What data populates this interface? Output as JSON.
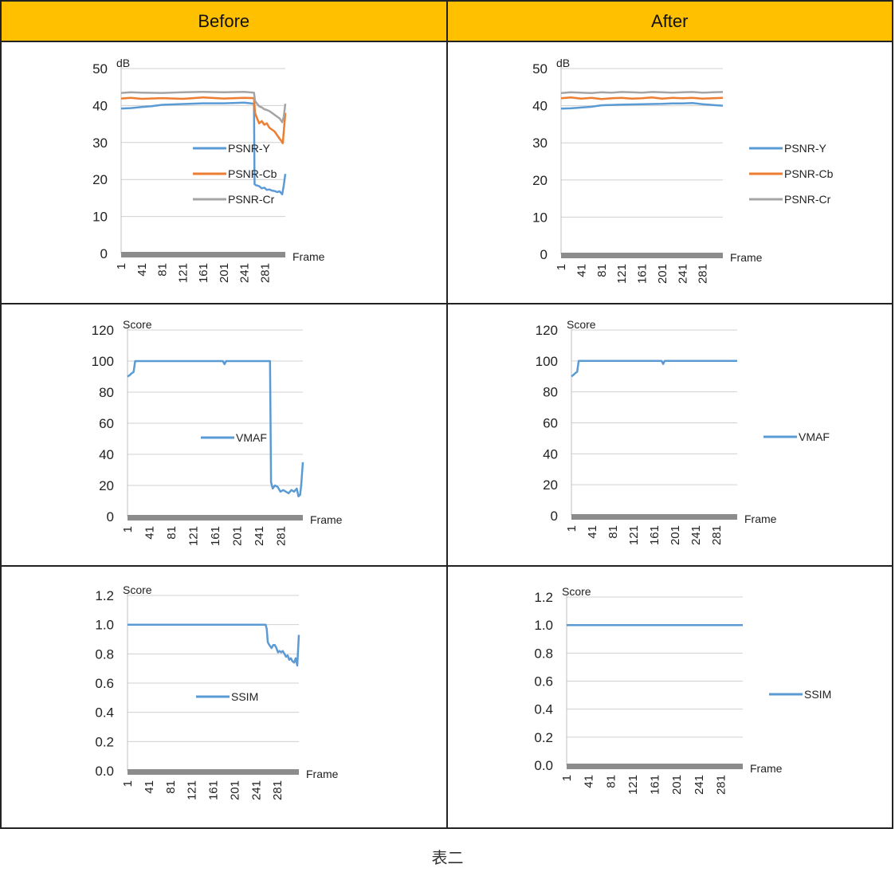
{
  "headers": {
    "before": "Before",
    "after": "After"
  },
  "caption": "表二",
  "chart_data": [
    {
      "id": "psnr-before",
      "type": "line",
      "unit_label": "dB",
      "xlabel": "Frame",
      "ylim": [
        0,
        50
      ],
      "yticks": [
        "0",
        "10",
        "20",
        "30",
        "40",
        "50"
      ],
      "xticks": [
        "1",
        "41",
        "81",
        "121",
        "161",
        "201",
        "241",
        "281"
      ],
      "x_range": [
        1,
        321
      ],
      "grid": true,
      "legend_position": "right",
      "series": [
        {
          "name": "PSNR-Y",
          "color": "#5b9bd5",
          "x": [
            1,
            20,
            41,
            60,
            81,
            121,
            161,
            201,
            241,
            260,
            261,
            263,
            270,
            275,
            280,
            285,
            290,
            295,
            300,
            305,
            310,
            315,
            318,
            321
          ],
          "y": [
            39.2,
            39.3,
            39.6,
            39.8,
            40.2,
            40.4,
            40.6,
            40.6,
            40.8,
            40.5,
            18.8,
            18.5,
            18.2,
            17.6,
            17.8,
            17.2,
            17.3,
            17.0,
            16.9,
            16.6,
            16.8,
            16.0,
            18.5,
            21.5
          ]
        },
        {
          "name": "PSNR-Cb",
          "color": "#ed7d31",
          "x": [
            1,
            20,
            41,
            81,
            121,
            161,
            201,
            241,
            260,
            262,
            266,
            270,
            275,
            280,
            285,
            290,
            295,
            300,
            305,
            310,
            313,
            316,
            318,
            321
          ],
          "y": [
            41.9,
            42.1,
            41.8,
            42.0,
            41.8,
            42.2,
            41.9,
            42.1,
            42.0,
            38.0,
            36.5,
            35.2,
            35.8,
            34.8,
            35.2,
            34.0,
            33.5,
            33.0,
            32.0,
            31.0,
            30.5,
            29.8,
            33.0,
            38.0
          ]
        },
        {
          "name": "PSNR-Cr",
          "color": "#a5a5a5",
          "x": [
            1,
            20,
            41,
            81,
            121,
            161,
            201,
            241,
            260,
            262,
            266,
            270,
            275,
            280,
            285,
            290,
            295,
            300,
            305,
            310,
            315,
            318,
            321
          ],
          "y": [
            43.4,
            43.6,
            43.5,
            43.4,
            43.6,
            43.7,
            43.6,
            43.7,
            43.5,
            41.2,
            40.5,
            39.8,
            39.5,
            39.0,
            38.8,
            38.5,
            38.0,
            37.5,
            37.0,
            36.5,
            35.5,
            37.0,
            40.5
          ]
        }
      ]
    },
    {
      "id": "psnr-after",
      "type": "line",
      "unit_label": "dB",
      "xlabel": "Frame",
      "ylim": [
        0,
        50
      ],
      "yticks": [
        "0",
        "10",
        "20",
        "30",
        "40",
        "50"
      ],
      "xticks": [
        "1",
        "41",
        "81",
        "121",
        "161",
        "201",
        "241",
        "281"
      ],
      "x_range": [
        1,
        321
      ],
      "grid": true,
      "legend_position": "right",
      "series": [
        {
          "name": "PSNR-Y",
          "color": "#5b9bd5",
          "x": [
            1,
            20,
            41,
            60,
            81,
            121,
            161,
            201,
            221,
            241,
            261,
            281,
            301,
            321
          ],
          "y": [
            39.2,
            39.3,
            39.5,
            39.7,
            40.1,
            40.3,
            40.4,
            40.5,
            40.6,
            40.6,
            40.7,
            40.4,
            40.2,
            40.0
          ]
        },
        {
          "name": "PSNR-Cb",
          "color": "#ed7d31",
          "x": [
            1,
            20,
            41,
            61,
            81,
            101,
            121,
            141,
            161,
            181,
            201,
            221,
            241,
            261,
            281,
            301,
            321
          ],
          "y": [
            42.0,
            42.2,
            41.9,
            42.1,
            41.8,
            42.0,
            42.1,
            41.9,
            42.0,
            42.2,
            41.9,
            42.1,
            42.0,
            42.1,
            41.9,
            42.0,
            42.1
          ]
        },
        {
          "name": "PSNR-Cr",
          "color": "#a5a5a5",
          "x": [
            1,
            20,
            41,
            61,
            81,
            101,
            121,
            141,
            161,
            181,
            201,
            221,
            241,
            261,
            281,
            301,
            321
          ],
          "y": [
            43.4,
            43.6,
            43.5,
            43.4,
            43.6,
            43.5,
            43.7,
            43.6,
            43.5,
            43.7,
            43.6,
            43.5,
            43.6,
            43.7,
            43.5,
            43.6,
            43.7
          ]
        }
      ]
    },
    {
      "id": "vmaf-before",
      "type": "line",
      "unit_label": "Score",
      "xlabel": "Frame",
      "ylim": [
        0,
        120
      ],
      "yticks": [
        "0",
        "20",
        "40",
        "60",
        "80",
        "100",
        "120"
      ],
      "xticks": [
        "1",
        "41",
        "81",
        "121",
        "161",
        "201",
        "241",
        "281"
      ],
      "x_range": [
        1,
        321
      ],
      "grid": true,
      "legend_position": "right",
      "series": [
        {
          "name": "VMAF",
          "color": "#5b9bd5",
          "x": [
            1,
            5,
            8,
            12,
            15,
            41,
            81,
            121,
            175,
            178,
            181,
            221,
            261,
            263,
            266,
            270,
            275,
            280,
            285,
            290,
            295,
            300,
            305,
            310,
            313,
            316,
            318,
            321
          ],
          "y": [
            90,
            91,
            92,
            93,
            100,
            100,
            100,
            100,
            100,
            98,
            100,
            100,
            100,
            22,
            18,
            20,
            19,
            16,
            17,
            16,
            15,
            17,
            16,
            18,
            13,
            14,
            20,
            35
          ]
        }
      ]
    },
    {
      "id": "vmaf-after",
      "type": "line",
      "unit_label": "Score",
      "xlabel": "Frame",
      "ylim": [
        0,
        120
      ],
      "yticks": [
        "0",
        "20",
        "40",
        "60",
        "80",
        "100",
        "120"
      ],
      "xticks": [
        "1",
        "41",
        "81",
        "121",
        "161",
        "201",
        "241",
        "281"
      ],
      "x_range": [
        1,
        321
      ],
      "grid": true,
      "legend_position": "right",
      "series": [
        {
          "name": "VMAF",
          "color": "#5b9bd5",
          "x": [
            1,
            5,
            8,
            12,
            15,
            41,
            81,
            121,
            175,
            178,
            181,
            221,
            261,
            301,
            321
          ],
          "y": [
            90,
            91,
            92,
            93,
            100,
            100,
            100,
            100,
            100,
            98,
            100,
            100,
            100,
            100,
            100
          ]
        }
      ]
    },
    {
      "id": "ssim-before",
      "type": "line",
      "unit_label": "Score",
      "xlabel": "Frame",
      "ylim": [
        0,
        1.2
      ],
      "yticks": [
        "0.0",
        "0.2",
        "0.4",
        "0.6",
        "0.8",
        "1.0",
        "1.2"
      ],
      "xticks": [
        "1",
        "41",
        "81",
        "121",
        "161",
        "201",
        "241",
        "281"
      ],
      "x_range": [
        1,
        321
      ],
      "grid": true,
      "legend_position": "right",
      "series": [
        {
          "name": "SSIM",
          "color": "#5b9bd5",
          "x": [
            1,
            41,
            81,
            121,
            161,
            201,
            241,
            259,
            261,
            263,
            266,
            270,
            273,
            276,
            279,
            282,
            285,
            288,
            291,
            294,
            297,
            300,
            303,
            306,
            309,
            312,
            315,
            318,
            321
          ],
          "y": [
            1.0,
            1.0,
            1.0,
            1.0,
            1.0,
            1.0,
            1.0,
            1.0,
            0.97,
            0.88,
            0.86,
            0.84,
            0.86,
            0.86,
            0.84,
            0.81,
            0.82,
            0.81,
            0.82,
            0.8,
            0.78,
            0.79,
            0.76,
            0.77,
            0.75,
            0.74,
            0.77,
            0.72,
            0.93
          ]
        }
      ]
    },
    {
      "id": "ssim-after",
      "type": "line",
      "unit_label": "Score",
      "xlabel": "Frame",
      "ylim": [
        0,
        1.2
      ],
      "yticks": [
        "0.0",
        "0.2",
        "0.4",
        "0.6",
        "0.8",
        "1.0",
        "1.2"
      ],
      "xticks": [
        "1",
        "41",
        "81",
        "121",
        "161",
        "201",
        "241",
        "281"
      ],
      "x_range": [
        1,
        321
      ],
      "grid": true,
      "legend_position": "right",
      "series": [
        {
          "name": "SSIM",
          "color": "#5b9bd5",
          "x": [
            1,
            41,
            81,
            121,
            161,
            201,
            241,
            281,
            321
          ],
          "y": [
            1.0,
            1.0,
            1.0,
            1.0,
            1.0,
            1.0,
            1.0,
            1.0,
            1.0
          ]
        }
      ]
    }
  ]
}
